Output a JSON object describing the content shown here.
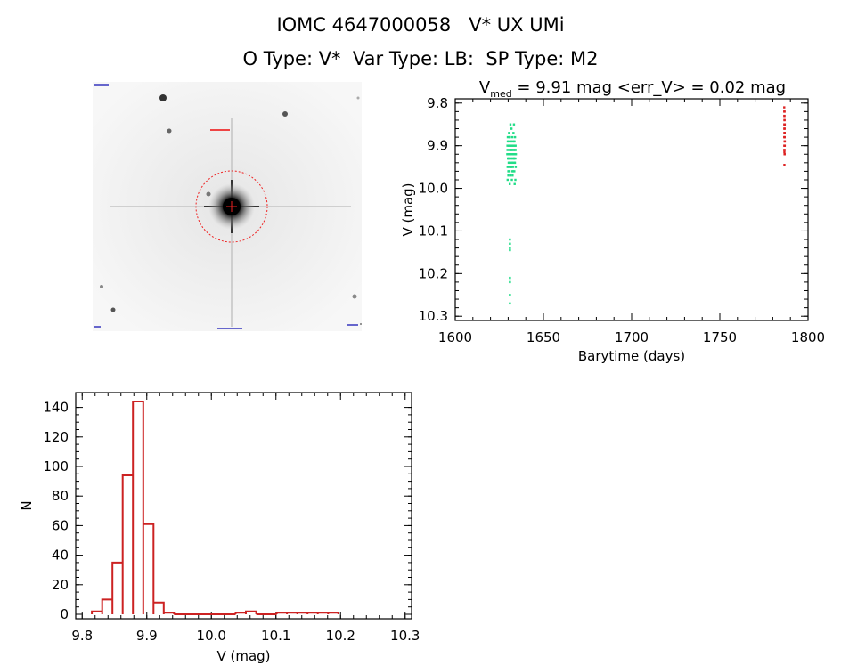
{
  "header": {
    "line1": "IOMC 4647000058   V* UX UMi",
    "line2": "O Type: V*  Var Type: LB:  SP Type: M2"
  },
  "colors": {
    "light_curve_series_1": "#22dd88",
    "light_curve_series_2": "#dd2222",
    "histogram": "#cc2222",
    "image_circle": "#ee2222"
  },
  "chart_data": [
    {
      "type": "scatter",
      "title_prefix": "V",
      "title_subscript": "med",
      "title_suffix": " = 9.91 mag <err_V> = 0.02 mag",
      "xlabel": "Barytime (days)",
      "ylabel": "V (mag)",
      "xlim": [
        1600,
        1800
      ],
      "ylim": [
        10.31,
        9.79
      ],
      "y_inverted": true,
      "xticks": [
        "1600",
        "1650",
        "1700",
        "1750",
        "1800"
      ],
      "yticks": [
        "9.8",
        "9.9",
        "10.0",
        "10.1",
        "10.2",
        "10.3"
      ],
      "xtick_values": [
        1600,
        1650,
        1700,
        1750,
        1800
      ],
      "ytick_values": [
        9.8,
        9.9,
        10.0,
        10.1,
        10.2,
        10.3
      ],
      "series": [
        {
          "x": [
            1629.5,
            1629.6,
            1629.7,
            1629.8,
            1629.9,
            1630.0,
            1630.1,
            1630.2,
            1630.3,
            1630.4,
            1630.5,
            1630.6,
            1630.7,
            1630.8,
            1630.9,
            1631.0,
            1631.1,
            1631.2,
            1631.3,
            1631.4,
            1631.5,
            1631.6,
            1631.7,
            1631.8,
            1631.9,
            1632.0,
            1632.1,
            1632.2,
            1632.3,
            1632.4,
            1632.5,
            1632.6,
            1632.7,
            1632.8,
            1632.9,
            1633.0,
            1633.1,
            1633.2,
            1633.3,
            1633.4,
            1633.5,
            1633.6,
            1633.7,
            1633.8,
            1633.9,
            1634.0,
            1634.1,
            1634.2,
            1634.3,
            1634.4,
            1629.6,
            1629.8,
            1630.0,
            1630.2,
            1630.4,
            1630.6,
            1630.8,
            1631.0,
            1631.2,
            1631.4,
            1631.6,
            1631.8,
            1632.0,
            1632.2,
            1632.4,
            1632.6,
            1632.8,
            1633.0,
            1633.2,
            1633.4,
            1633.6,
            1633.8,
            1634.0,
            1634.2,
            1629.7,
            1630.1,
            1630.5,
            1630.9,
            1631.3,
            1631.7,
            1632.1,
            1632.5,
            1632.9,
            1633.3,
            1633.7,
            1634.1,
            1630.3,
            1631.1,
            1631.9,
            1632.7,
            1633.5,
            1631.0,
            1631.0,
            1631.0,
            1631.0,
            1631.0,
            1631.0,
            1631.0,
            1631.0
          ],
          "y": [
            9.92,
            9.9,
            9.95,
            9.88,
            9.93,
            9.91,
            9.96,
            9.89,
            9.94,
            9.92,
            9.87,
            9.93,
            9.9,
            9.95,
            9.91,
            9.88,
            9.94,
            9.92,
            9.97,
            9.9,
            9.93,
            9.89,
            9.95,
            9.91,
            9.86,
            9.94,
            9.92,
            9.9,
            9.96,
            9.88,
            9.93,
            9.91,
            9.95,
            9.89,
            9.92,
            9.87,
            9.94,
            9.9,
            9.93,
            9.91,
            9.96,
            9.89,
            9.92,
            9.94,
            9.88,
            9.91,
            9.93,
            9.9,
            9.95,
            9.92,
            9.91,
            9.89,
            9.93,
            9.92,
            9.9,
            9.94,
            9.88,
            9.92,
            9.91,
            9.95,
            9.9,
            9.93,
            9.89,
            9.91,
            9.94,
            9.92,
            9.9,
            9.93,
            9.91,
            9.89,
            9.92,
            9.94,
            9.9,
            9.91,
            9.98,
            9.97,
            9.96,
            9.99,
            9.85,
            9.86,
            9.98,
            9.97,
            9.96,
            9.85,
            9.99,
            9.98,
            9.93,
            9.92,
            9.91,
            9.92,
            9.93,
            10.12,
            10.13,
            10.14,
            10.145,
            10.21,
            10.22,
            10.25,
            10.27
          ]
        },
        {
          "x": [
            1786.5,
            1786.5,
            1786.6,
            1786.6,
            1786.6,
            1786.7,
            1786.7,
            1786.7,
            1786.8,
            1786.8,
            1786.5,
            1786.6,
            1786.7,
            1786.8,
            1786.6,
            1786.7,
            1786.5,
            1786.8,
            1786.6,
            1786.7,
            1786.6,
            1786.7,
            1786.6,
            1786.7,
            1786.6,
            1786.7,
            1786.6,
            1786.7,
            1786.6,
            1786.7,
            1786.6
          ],
          "y": [
            9.81,
            9.82,
            9.83,
            9.84,
            9.85,
            9.86,
            9.87,
            9.88,
            9.89,
            9.9,
            9.91,
            9.915,
            9.92,
            9.85,
            9.86,
            9.87,
            9.88,
            9.89,
            9.9,
            9.84,
            9.83,
            9.82,
            9.86,
            9.88,
            9.9,
            9.92,
            9.87,
            9.89,
            9.85,
            9.91,
            9.945
          ]
        }
      ]
    },
    {
      "type": "histogram",
      "xlabel": "V (mag)",
      "ylabel": "N",
      "xlim": [
        9.79,
        10.31
      ],
      "ylim": [
        0,
        150
      ],
      "xticks": [
        "9.8",
        "9.9",
        "10.0",
        "10.1",
        "10.2",
        "10.3"
      ],
      "yticks": [
        "0",
        "20",
        "40",
        "60",
        "80",
        "100",
        "120",
        "140"
      ],
      "xtick_values": [
        9.8,
        9.9,
        10.0,
        10.1,
        10.2,
        10.3
      ],
      "ytick_values": [
        0,
        20,
        40,
        60,
        80,
        100,
        120,
        140
      ],
      "bin_start": 9.815,
      "bin_width": 0.0159,
      "counts": [
        2,
        10,
        35,
        94,
        144,
        61,
        8,
        1,
        0,
        0,
        0,
        0,
        0,
        0,
        1,
        2,
        0,
        0,
        1,
        1,
        1,
        1,
        1,
        1
      ]
    }
  ]
}
